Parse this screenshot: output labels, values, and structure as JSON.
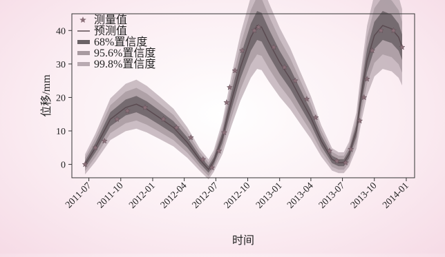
{
  "chart_data": {
    "type": "line",
    "xlabel": "时间",
    "ylabel": "位移/mm",
    "x_ticks": [
      "2011-07",
      "2011-10",
      "2012-01",
      "2012-04",
      "2012-07",
      "2012-10",
      "2013-01",
      "2013-04",
      "2013-07",
      "2013-10",
      "2014-01"
    ],
    "y_ticks": [
      0,
      10,
      20,
      30,
      40
    ],
    "ylim": [
      -4,
      45
    ],
    "xlim": [
      "2011-05-13",
      "2014-01-25"
    ],
    "legend": {
      "position": "top-left",
      "entries": [
        {
          "label": "测量值",
          "marker": "star",
          "color": "#8a6f78"
        },
        {
          "label": "预测值",
          "marker": "line",
          "color": "#5a4a50"
        },
        {
          "label": "68%置信度",
          "marker": "band",
          "color": "#6b6266"
        },
        {
          "label": "95.6%置信度",
          "marker": "band",
          "color": "#a89aa0"
        },
        {
          "label": "99.8%置信度",
          "marker": "band",
          "color": "#b9aab1"
        }
      ]
    },
    "colors": {
      "prediction": "#5a4a50",
      "measured": "#8a6f78",
      "band68": "#6b6266",
      "band956": "#a89aa0",
      "band998": "#b9aab1"
    },
    "series": [
      {
        "name": "预测值",
        "x": [
          "2011-06-20",
          "2011-07-20",
          "2011-09-01",
          "2011-10-15",
          "2011-11-15",
          "2011-12-15",
          "2012-01-20",
          "2012-03-01",
          "2012-04-10",
          "2012-05-15",
          "2012-06-10",
          "2012-06-25",
          "2012-07-20",
          "2012-08-15",
          "2012-09-10",
          "2012-10-10",
          "2012-10-28",
          "2012-11-10",
          "2012-12-01",
          "2013-01-01",
          "2013-02-01",
          "2013-03-01",
          "2013-04-01",
          "2013-05-01",
          "2013-06-01",
          "2013-06-20",
          "2013-07-05",
          "2013-07-20",
          "2013-08-10",
          "2013-08-25",
          "2013-09-10",
          "2013-10-01",
          "2013-10-25",
          "2013-11-20",
          "2013-12-10",
          "2013-12-20"
        ],
        "values": [
          0,
          5,
          13.5,
          17,
          18,
          16.5,
          14,
          11,
          6.5,
          1.5,
          -1.5,
          1,
          8,
          19,
          29,
          38,
          41.5,
          41,
          36.5,
          30.5,
          25.5,
          20,
          14,
          7,
          1.5,
          0.5,
          0.5,
          3,
          10,
          21,
          31,
          38.5,
          41.5,
          40.5,
          38,
          35
        ]
      },
      {
        "name": "测量值",
        "x": [
          "2011-06-20",
          "2011-07-20",
          "2011-08-15",
          "2011-09-20",
          "2011-10-20",
          "2011-12-10",
          "2012-02-01",
          "2012-03-10",
          "2012-04-20",
          "2012-05-25",
          "2012-06-20",
          "2012-07-10",
          "2012-07-25",
          "2012-08-01",
          "2012-08-10",
          "2012-08-25",
          "2012-09-15",
          "2012-10-20",
          "2012-11-01",
          "2012-12-15",
          "2013-01-15",
          "2013-02-15",
          "2013-03-20",
          "2013-04-15",
          "2013-05-25",
          "2013-06-15",
          "2013-07-10",
          "2013-07-25",
          "2013-08-20",
          "2013-09-01",
          "2013-09-10",
          "2013-09-25",
          "2013-10-20",
          "2013-11-25",
          "2013-12-20"
        ],
        "values": [
          0,
          5,
          7,
          13.5,
          16,
          17,
          13.5,
          11,
          8,
          1.5,
          -1,
          4,
          9.5,
          18.5,
          23,
          28,
          34,
          40,
          41,
          35,
          29,
          25,
          19.5,
          14,
          4,
          1,
          0.5,
          4.5,
          13,
          20,
          25.5,
          34,
          40,
          40,
          35
        ]
      }
    ]
  }
}
